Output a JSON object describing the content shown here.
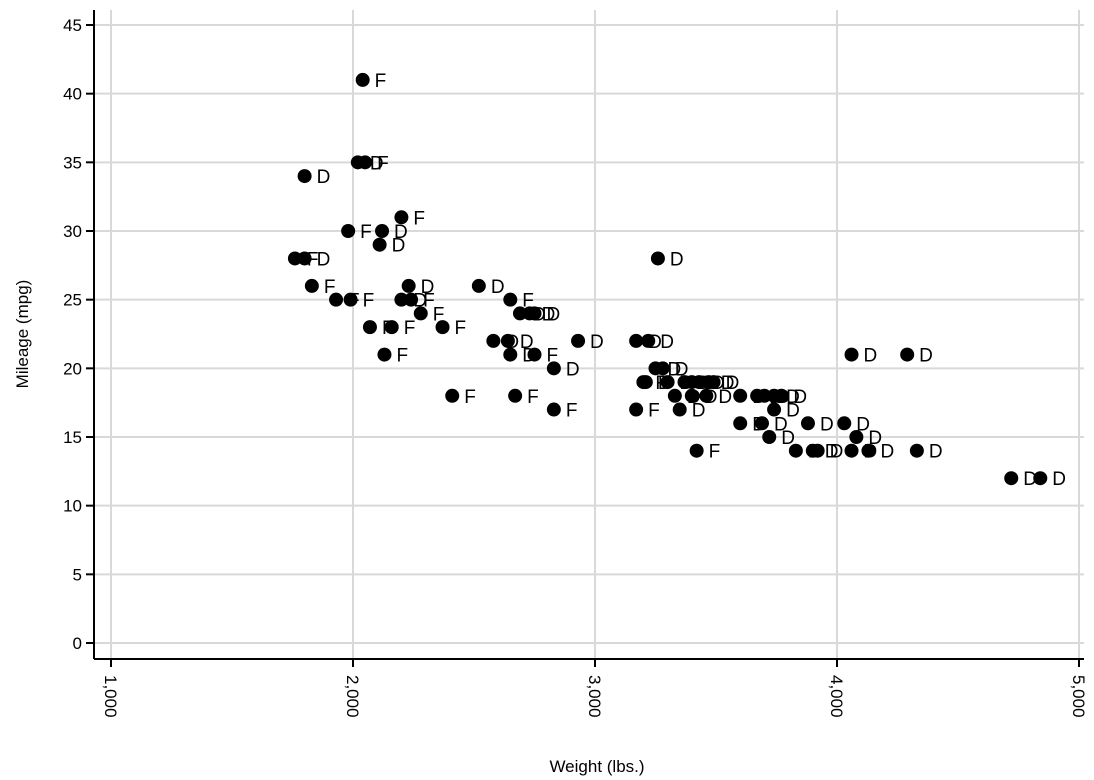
{
  "chart_data": {
    "type": "scatter",
    "title": "",
    "xlabel": "Weight (lbs.)",
    "ylabel": "Mileage (mpg)",
    "xlim": [
      1000,
      5000
    ],
    "ylim": [
      0,
      45
    ],
    "x_ticks": [
      1000,
      2000,
      3000,
      4000,
      5000
    ],
    "x_tick_labels": [
      "1,000",
      "2,000",
      "3,000",
      "4,000",
      "5,000"
    ],
    "y_ticks": [
      0,
      5,
      10,
      15,
      20,
      25,
      30,
      35,
      40,
      45
    ],
    "y_tick_labels": [
      "0",
      "5",
      "10",
      "15",
      "20",
      "25",
      "30",
      "35",
      "40",
      "45"
    ],
    "grid": true,
    "marker_color": "#000000",
    "grid_color": "#d9d9d9",
    "points": [
      {
        "x": 2040,
        "y": 41,
        "label": "F"
      },
      {
        "x": 2020,
        "y": 35,
        "label": "D"
      },
      {
        "x": 2050,
        "y": 35,
        "label": "F"
      },
      {
        "x": 1800,
        "y": 34,
        "label": "D"
      },
      {
        "x": 2200,
        "y": 31,
        "label": "F"
      },
      {
        "x": 1980,
        "y": 30,
        "label": "F"
      },
      {
        "x": 2120,
        "y": 30,
        "label": "D"
      },
      {
        "x": 2110,
        "y": 29,
        "label": "D"
      },
      {
        "x": 1760,
        "y": 28,
        "label": "F"
      },
      {
        "x": 1800,
        "y": 28,
        "label": "D"
      },
      {
        "x": 3260,
        "y": 28,
        "label": "D"
      },
      {
        "x": 1830,
        "y": 26,
        "label": "F"
      },
      {
        "x": 2230,
        "y": 26,
        "label": "D"
      },
      {
        "x": 2520,
        "y": 26,
        "label": "D"
      },
      {
        "x": 1930,
        "y": 25,
        "label": "F"
      },
      {
        "x": 1990,
        "y": 25,
        "label": "F"
      },
      {
        "x": 2200,
        "y": 25,
        "label": "D"
      },
      {
        "x": 2240,
        "y": 25,
        "label": "F"
      },
      {
        "x": 2650,
        "y": 25,
        "label": "F"
      },
      {
        "x": 2280,
        "y": 24,
        "label": "F"
      },
      {
        "x": 2690,
        "y": 24,
        "label": "D"
      },
      {
        "x": 2730,
        "y": 24,
        "label": "D"
      },
      {
        "x": 2750,
        "y": 24,
        "label": "D"
      },
      {
        "x": 2070,
        "y": 23,
        "label": "F"
      },
      {
        "x": 2160,
        "y": 23,
        "label": "F"
      },
      {
        "x": 2370,
        "y": 23,
        "label": "F"
      },
      {
        "x": 2580,
        "y": 22,
        "label": "D"
      },
      {
        "x": 2640,
        "y": 22,
        "label": "D"
      },
      {
        "x": 2930,
        "y": 22,
        "label": "D"
      },
      {
        "x": 3170,
        "y": 22,
        "label": "D"
      },
      {
        "x": 3220,
        "y": 22,
        "label": "D"
      },
      {
        "x": 2130,
        "y": 21,
        "label": "F"
      },
      {
        "x": 2650,
        "y": 21,
        "label": "D"
      },
      {
        "x": 2750,
        "y": 21,
        "label": "F"
      },
      {
        "x": 4060,
        "y": 21,
        "label": "D"
      },
      {
        "x": 4290,
        "y": 21,
        "label": "D"
      },
      {
        "x": 2830,
        "y": 20,
        "label": "D"
      },
      {
        "x": 3250,
        "y": 20,
        "label": "D"
      },
      {
        "x": 3280,
        "y": 20,
        "label": "D"
      },
      {
        "x": 3200,
        "y": 19,
        "label": "F"
      },
      {
        "x": 3210,
        "y": 19,
        "label": "D"
      },
      {
        "x": 3300,
        "y": 19,
        "label": "D"
      },
      {
        "x": 3370,
        "y": 19,
        "label": "D"
      },
      {
        "x": 3400,
        "y": 19,
        "label": "D"
      },
      {
        "x": 3430,
        "y": 19,
        "label": "D"
      },
      {
        "x": 3470,
        "y": 19,
        "label": "D"
      },
      {
        "x": 3490,
        "y": 19,
        "label": "D"
      },
      {
        "x": 2410,
        "y": 18,
        "label": "F"
      },
      {
        "x": 2670,
        "y": 18,
        "label": "F"
      },
      {
        "x": 3330,
        "y": 18,
        "label": "D"
      },
      {
        "x": 3400,
        "y": 18,
        "label": "D"
      },
      {
        "x": 3460,
        "y": 18,
        "label": "D"
      },
      {
        "x": 3600,
        "y": 18,
        "label": "D"
      },
      {
        "x": 3670,
        "y": 18,
        "label": "D"
      },
      {
        "x": 3700,
        "y": 18,
        "label": "D"
      },
      {
        "x": 3740,
        "y": 18,
        "label": "D"
      },
      {
        "x": 3770,
        "y": 18,
        "label": "D"
      },
      {
        "x": 2830,
        "y": 17,
        "label": "F"
      },
      {
        "x": 3170,
        "y": 17,
        "label": "F"
      },
      {
        "x": 3350,
        "y": 17,
        "label": "D"
      },
      {
        "x": 3740,
        "y": 17,
        "label": "D"
      },
      {
        "x": 3600,
        "y": 16,
        "label": "D"
      },
      {
        "x": 3690,
        "y": 16,
        "label": "D"
      },
      {
        "x": 3880,
        "y": 16,
        "label": "D"
      },
      {
        "x": 4030,
        "y": 16,
        "label": "D"
      },
      {
        "x": 3720,
        "y": 15,
        "label": "D"
      },
      {
        "x": 4080,
        "y": 15,
        "label": "D"
      },
      {
        "x": 3420,
        "y": 14,
        "label": "F"
      },
      {
        "x": 3830,
        "y": 14,
        "label": "D"
      },
      {
        "x": 3900,
        "y": 14,
        "label": "D"
      },
      {
        "x": 3920,
        "y": 14,
        "label": "D"
      },
      {
        "x": 4060,
        "y": 14,
        "label": "D"
      },
      {
        "x": 4130,
        "y": 14,
        "label": "D"
      },
      {
        "x": 4330,
        "y": 14,
        "label": "D"
      },
      {
        "x": 4720,
        "y": 12,
        "label": "D"
      },
      {
        "x": 4840,
        "y": 12,
        "label": "D"
      }
    ]
  }
}
